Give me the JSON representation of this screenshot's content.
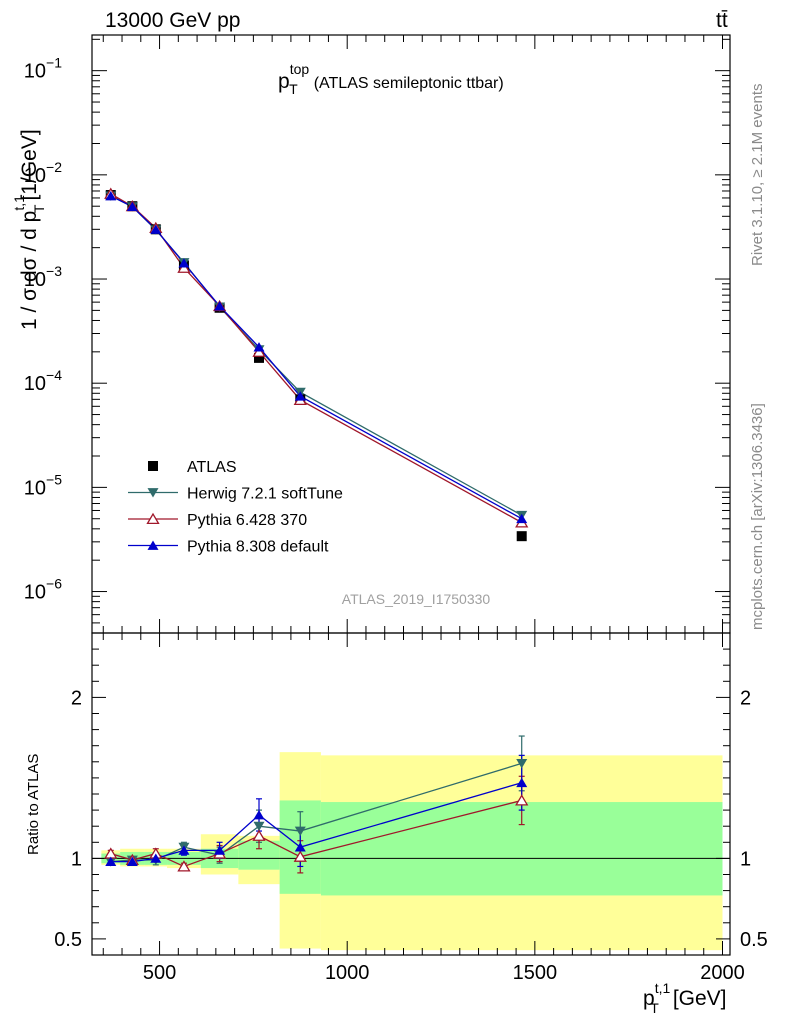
{
  "header": {
    "beam": "13000 GeV pp",
    "process": "tt̄"
  },
  "side_labels": {
    "rivet": "Rivet 3.1.10, ≥ 2.1M events",
    "mcplots": "mcplots.cern.ch [arXiv:1306.3436]"
  },
  "analysis_id": "ATLAS_2019_I1750330",
  "chart_data": [
    {
      "type": "line",
      "panel": "main",
      "title": {
        "base": "p",
        "sup": "top",
        "sub": "T",
        "rest": "(ATLAS semileptonic ttbar)"
      },
      "ylabel": "1 / σ dσ / d p_T^{t,1} [1/GeV]",
      "xlim": [
        320,
        2020
      ],
      "ylim": [
        4e-07,
        0.22
      ],
      "yscale": "log",
      "yticks": [
        1e-06,
        1e-05,
        0.0001,
        0.001,
        0.01,
        0.1
      ],
      "ytick_labels": [
        {
          "base": "10",
          "exp": "−6"
        },
        {
          "base": "10",
          "exp": "−5"
        },
        {
          "base": "10",
          "exp": "−4"
        },
        {
          "base": "10",
          "exp": "−3"
        },
        {
          "base": "10",
          "exp": "−2"
        },
        {
          "base": "10",
          "exp": "−1"
        }
      ],
      "legend_position": "lower-left",
      "x": [
        370,
        427.5,
        490,
        565,
        660,
        765,
        875,
        1465
      ],
      "series": [
        {
          "name": "ATLAS",
          "color": "#000000",
          "marker": "square",
          "values": [
            0.0064,
            0.005,
            0.003,
            0.00135,
            0.00053,
            0.000175,
            7e-05,
            3.4e-06
          ]
        },
        {
          "name": "Herwig 7.2.1 softTune",
          "color": "#2f6b6b",
          "marker": "triangle-down",
          "values": [
            0.00628,
            0.00495,
            0.00297,
            0.00144,
            0.00054,
            0.00021,
            8.2e-05,
            5.4e-06
          ]
        },
        {
          "name": "Pythia 6.428 370",
          "color": "#a0172a",
          "marker": "triangle-up-open",
          "values": [
            0.00658,
            0.005,
            0.00309,
            0.00128,
            0.00055,
            0.0002,
            6.9e-05,
            4.6e-06
          ]
        },
        {
          "name": "Pythia 8.308 default",
          "color": "#0000cc",
          "marker": "triangle-up",
          "values": [
            0.00627,
            0.00495,
            0.00299,
            0.00142,
            0.00055,
            0.000222,
            7.5e-05,
            5e-06
          ]
        }
      ]
    },
    {
      "type": "line",
      "panel": "ratio",
      "ylabel": "Ratio to ATLAS",
      "xlabel": {
        "base": "p",
        "sub": "T",
        "sup": "t,1",
        "unit": "[GeV]"
      },
      "xlim": [
        320,
        2020
      ],
      "ylim": [
        0.4,
        2.4
      ],
      "xticks": [
        500,
        1000,
        1500,
        2000
      ],
      "xtick_labels": [
        "500",
        "1000",
        "1500",
        "2000"
      ],
      "yticks": [
        0.5,
        1,
        2
      ],
      "ytick_labels": [
        "0.5",
        "1",
        "2"
      ],
      "bins": [
        [
          345,
          395
        ],
        [
          395,
          460
        ],
        [
          460,
          520
        ],
        [
          520,
          610
        ],
        [
          610,
          710
        ],
        [
          710,
          820
        ],
        [
          820,
          930
        ],
        [
          930,
          2000
        ]
      ],
      "band_stat": [
        [
          0.97,
          1.03
        ],
        [
          0.96,
          1.04
        ],
        [
          0.96,
          1.04
        ],
        [
          0.96,
          1.04
        ],
        [
          0.94,
          1.06
        ],
        [
          0.93,
          1.11
        ],
        [
          0.78,
          1.36
        ],
        [
          0.77,
          1.35
        ]
      ],
      "band_total": [
        [
          0.96,
          1.05
        ],
        [
          0.95,
          1.06
        ],
        [
          0.95,
          1.06
        ],
        [
          0.94,
          1.06
        ],
        [
          0.9,
          1.15
        ],
        [
          0.84,
          1.14
        ],
        [
          0.44,
          1.66
        ],
        [
          0.43,
          1.64
        ]
      ],
      "reference_line": 1,
      "x": [
        370,
        427.5,
        490,
        565,
        660,
        765,
        875,
        1465
      ],
      "series": [
        {
          "name": "Herwig 7.2.1 softTune",
          "color": "#2f6b6b",
          "marker": "triangle-down",
          "values": [
            0.98,
            0.99,
            0.99,
            1.07,
            1.02,
            1.2,
            1.17,
            1.59
          ],
          "err": [
            0.02,
            0.02,
            0.03,
            0.03,
            0.05,
            0.1,
            0.12,
            0.17
          ]
        },
        {
          "name": "Pythia 6.428 370",
          "color": "#a0172a",
          "marker": "triangle-up-open",
          "values": [
            1.03,
            0.99,
            1.03,
            0.95,
            1.03,
            1.14,
            1.01,
            1.36
          ],
          "err": [
            0.02,
            0.02,
            0.03,
            0.02,
            0.05,
            0.08,
            0.1,
            0.15
          ]
        },
        {
          "name": "Pythia 8.308 default",
          "color": "#0000cc",
          "marker": "triangle-up",
          "values": [
            0.98,
            0.98,
            1.0,
            1.05,
            1.05,
            1.27,
            1.07,
            1.47
          ],
          "err": [
            0.02,
            0.02,
            0.02,
            0.03,
            0.05,
            0.1,
            0.12,
            0.17
          ]
        }
      ]
    }
  ]
}
